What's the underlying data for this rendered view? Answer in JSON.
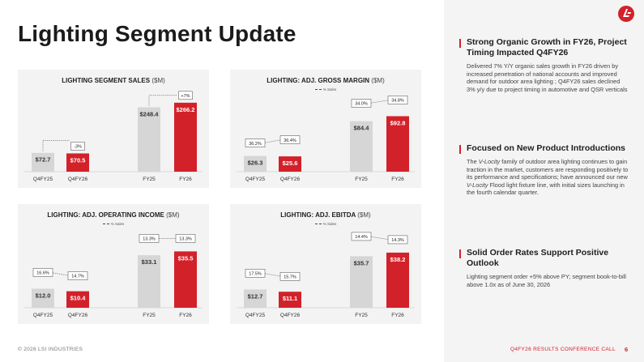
{
  "page": {
    "title": "Lighting Segment Update",
    "footer_left": "© 2026 LSI INDUSTRIES",
    "footer_right": "Q4FY26 RESULTS CONFERENCE CALL",
    "page_number": "6",
    "logo": "lsi-logo-icon"
  },
  "colors": {
    "accent": "#d3212a",
    "gray_bar": "#d6d6d6",
    "card_bg": "#f3f3f3",
    "sidebar_bg": "#f4f4f4"
  },
  "chart_data": [
    {
      "type": "bar",
      "title": "LIGHTING SEGMENT SALES",
      "title_unit": "($M)",
      "legend": "",
      "categories": [
        "Q4FY25",
        "Q4FY26",
        "FY25",
        "FY26"
      ],
      "values": [
        72.7,
        70.5,
        248.4,
        266.2
      ],
      "value_labels": [
        "$72.7",
        "$70.5",
        "$248.4",
        "$266.2"
      ],
      "ylim": [
        0,
        300
      ],
      "growth_labels": [
        {
          "between": [
            0,
            1
          ],
          "label": "-3%"
        },
        {
          "between": [
            2,
            3
          ],
          "label": "+7%"
        }
      ],
      "pct_series": null
    },
    {
      "type": "bar",
      "title": "LIGHTING: ADJ. GROSS MARGIN",
      "title_unit": "($M)",
      "legend": "% Sales",
      "categories": [
        "Q4FY25",
        "Q4FY26",
        "FY25",
        "FY26"
      ],
      "values": [
        26.3,
        25.6,
        84.4,
        92.8
      ],
      "value_labels": [
        "$26.3",
        "$25.6",
        "$84.4",
        "$92.8"
      ],
      "ylim": [
        0,
        130
      ],
      "growth_labels": [],
      "pct_series": {
        "values": [
          36.2,
          36.4,
          34.0,
          34.8
        ],
        "labels": [
          "36.2%",
          "36.4%",
          "34.0%",
          "34.8%"
        ]
      }
    },
    {
      "type": "bar",
      "title": "LIGHTING: ADJ. OPERATING INCOME",
      "title_unit": "($M)",
      "legend": "% Sales",
      "categories": [
        "Q4FY25",
        "Q4FY26",
        "FY25",
        "FY26"
      ],
      "values": [
        12.0,
        10.4,
        33.1,
        35.5
      ],
      "value_labels": [
        "$12.0",
        "$10.4",
        "$33.1",
        "$35.5"
      ],
      "ylim": [
        0,
        50
      ],
      "growth_labels": [],
      "pct_series": {
        "values": [
          16.6,
          14.7,
          13.3,
          13.3
        ],
        "labels": [
          "16.6%",
          "14.7%",
          "13.3%",
          "13.3%"
        ]
      }
    },
    {
      "type": "bar",
      "title": "LIGHTING: ADJ. EBITDA",
      "title_unit": "($M)",
      "legend": "% Sales",
      "categories": [
        "Q4FY25",
        "Q4FY26",
        "FY25",
        "FY26"
      ],
      "values": [
        12.7,
        11.1,
        35.7,
        38.2
      ],
      "value_labels": [
        "$12.7",
        "$11.1",
        "$35.7",
        "$38.2"
      ],
      "ylim": [
        0,
        55
      ],
      "growth_labels": [],
      "pct_series": {
        "values": [
          17.5,
          15.7,
          14.4,
          14.3
        ],
        "labels": [
          "17.5%",
          "15.7%",
          "14.4%",
          "14.3%"
        ]
      }
    }
  ],
  "sidebar": {
    "sections": [
      {
        "heading": "Strong Organic Growth in FY26, Project Timing Impacted Q4FY26",
        "body": "Delivered 7% Y/Y organic sales growth in FY26 driven by increased penetration of national accounts and improved demand for outdoor area lighting ; Q4FY26 sales declined 3% y/y due to project timing in automotive and QSR verticals"
      },
      {
        "heading": "Focused on New Product Introductions",
        "body_parts": [
          "The ",
          "V-Locity",
          " family of outdoor area lighting continues to gain traction in the market,  customers are responding positively to its performance and specifications; have announced our new ",
          "V-Locity",
          " Flood light fixture line, with initial sizes launching in the fourth calendar quarter."
        ]
      },
      {
        "heading": "Solid Order Rates Support Positive Outlook",
        "body": "Lighting segment order +5% above PY; segment book-to-bill above 1.0x as of June 30, 2026"
      }
    ]
  }
}
